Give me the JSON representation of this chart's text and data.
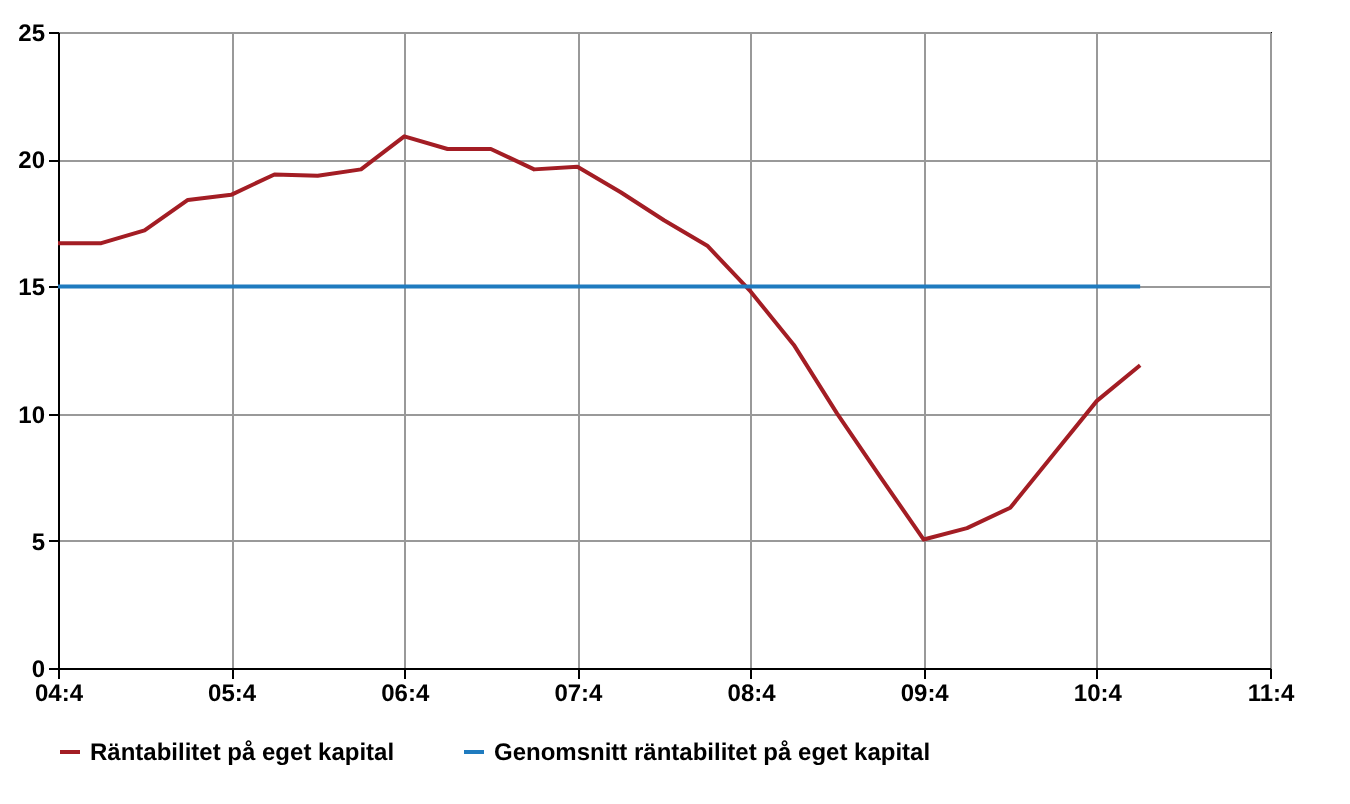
{
  "chart_data": {
    "type": "line",
    "categories": [
      "04:4",
      null,
      null,
      null,
      "05:4",
      null,
      null,
      null,
      "06:4",
      null,
      null,
      null,
      "07:4",
      null,
      null,
      null,
      "08:4",
      null,
      null,
      null,
      "09:4",
      null,
      null,
      null,
      "10:4",
      null,
      null,
      null,
      "11:4"
    ],
    "series": [
      {
        "name": "Räntabilitet på eget kapital",
        "color": "#a31d24",
        "values": [
          16.7,
          16.7,
          17.2,
          18.4,
          18.6,
          19.4,
          19.35,
          19.6,
          20.9,
          20.4,
          20.4,
          19.6,
          19.7,
          18.7,
          17.6,
          16.6,
          14.8,
          12.7,
          10.0,
          7.5,
          5.05,
          5.5,
          6.3,
          8.4,
          10.5,
          11.9,
          null,
          null,
          null
        ]
      },
      {
        "name": "Genomsnitt räntabilitet på eget kapital",
        "color": "#1f7bbf",
        "values": [
          15,
          15,
          15,
          15,
          15,
          15,
          15,
          15,
          15,
          15,
          15,
          15,
          15,
          15,
          15,
          15,
          15,
          15,
          15,
          15,
          15,
          15,
          15,
          15,
          15,
          15,
          null,
          null,
          null
        ]
      }
    ],
    "ylim": [
      0,
      25
    ],
    "yticks": [
      0,
      5,
      10,
      15,
      20,
      25
    ],
    "grid": true,
    "legend": "bottom"
  }
}
